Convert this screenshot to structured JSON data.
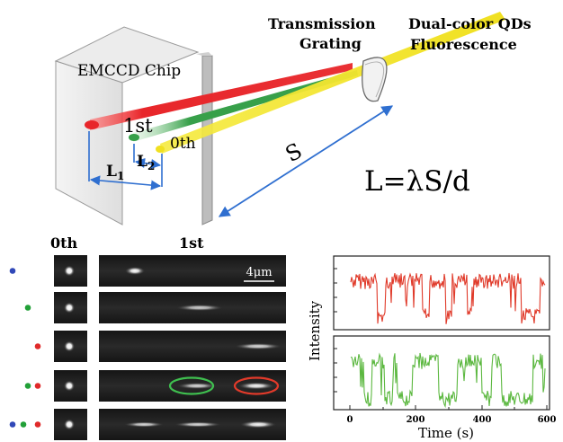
{
  "schematic": {
    "detector_label": "EMCCD Chip",
    "grating_label_line1": "Transmission",
    "grating_label_line2": "Grating",
    "source_label_line1": "Dual-color QDs",
    "source_label_line2": "Fluorescence",
    "order_first": "1st",
    "order_zero": "0th",
    "dist_L1": "L",
    "dist_L1_sub": "1",
    "dist_L2": "L",
    "dist_L2_sub": "2",
    "dist_S": "S",
    "equation": "L=λS/d",
    "colors": {
      "red": "#e8262a",
      "green": "#37a04a",
      "yellow": "#f0e020",
      "arrow_blue": "#2f6fd0"
    }
  },
  "images_panel": {
    "header_zero": "0th",
    "header_first": "1st",
    "scale_bar": "4μm",
    "rows": [
      {
        "dots": [
          "blue"
        ]
      },
      {
        "dots": [
          "green"
        ]
      },
      {
        "dots": [
          "red"
        ]
      },
      {
        "dots": [
          "green",
          "red"
        ]
      },
      {
        "dots": [
          "blue",
          "green",
          "red"
        ]
      }
    ],
    "dot_colors": {
      "blue": "#3048b8",
      "green": "#22a038",
      "red": "#e02a2a"
    },
    "ring_colors": {
      "green": "#3fbf4f",
      "red": "#e23a2a"
    }
  },
  "traces_panel": {
    "ylabel": "Intensity",
    "xlabel": "Time (s)",
    "x_ticks": [
      "0",
      "200",
      "400",
      "600"
    ],
    "trace_colors": {
      "top": "#e03a2a",
      "bottom": "#5cb840"
    }
  }
}
